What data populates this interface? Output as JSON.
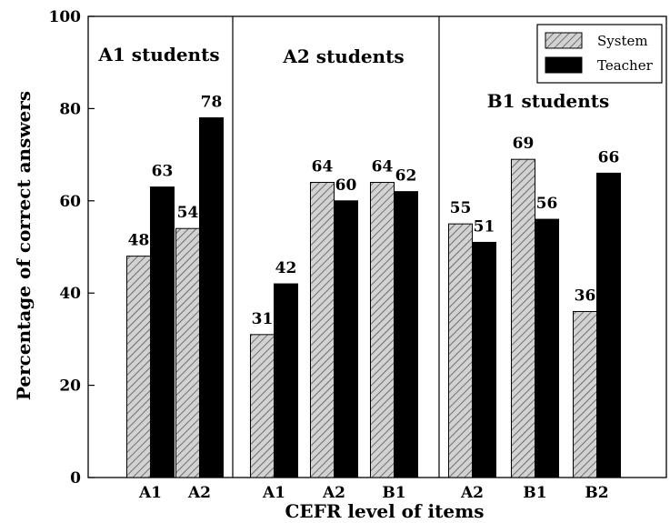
{
  "chart_data": {
    "type": "bar",
    "xlabel": "CEFR level of items",
    "ylabel": "Percentage of correct answers",
    "ylim": [
      0,
      100
    ],
    "yticks": [
      0,
      20,
      40,
      60,
      80,
      100
    ],
    "grid": false,
    "legend_placement": "top-right",
    "series_names": [
      "System",
      "Teacher"
    ],
    "series_styles": {
      "System": "hatched-gray",
      "Teacher": "black"
    },
    "groups": [
      {
        "name": "A1 students",
        "categories": [
          "A1",
          "A2"
        ],
        "series": [
          {
            "name": "System",
            "values": [
              48,
              54
            ]
          },
          {
            "name": "Teacher",
            "values": [
              63,
              78
            ]
          }
        ]
      },
      {
        "name": "A2 students",
        "categories": [
          "A1",
          "A2",
          "B1"
        ],
        "series": [
          {
            "name": "System",
            "values": [
              31,
              64,
              64
            ]
          },
          {
            "name": "Teacher",
            "values": [
              42,
              60,
              62
            ]
          }
        ]
      },
      {
        "name": "B1 students",
        "categories": [
          "A2",
          "B1",
          "B2"
        ],
        "series": [
          {
            "name": "System",
            "values": [
              55,
              69,
              36
            ]
          },
          {
            "name": "Teacher",
            "values": [
              51,
              56,
              66
            ]
          }
        ]
      }
    ]
  }
}
